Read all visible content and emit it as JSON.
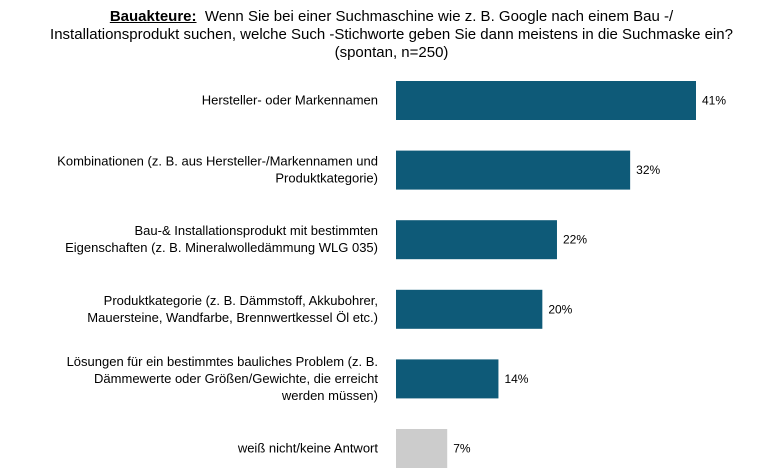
{
  "chart_data": {
    "type": "bar",
    "orientation": "horizontal",
    "title": {
      "lead": "Bauakteure:",
      "line1": "Wenn Sie bei einer Suchmaschine wie z. B. Google nach einem Bau      -/",
      "line2": "Installationsprodukt suchen, welche Such    -Stichworte geben Sie dann meistens in die Suchmaske ein?",
      "line3": "(spontan, n=250)"
    },
    "categories": [
      [
        "Hersteller- oder Markennamen"
      ],
      [
        "Kombinationen (z. B. aus Hersteller-/Markennamen und",
        "Produktkategorie)"
      ],
      [
        "Bau-& Installationsprodukt mit bestimmten",
        "Eigenschaften (z. B. Mineralwolledämmung WLG 035)"
      ],
      [
        "Produktkategorie (z. B. Dämmstoff, Akkubohrer,",
        "Mauersteine, Wandfarbe, Brennwertkessel Öl etc.)"
      ],
      [
        "Lösungen für ein bestimmtes bauliches Problem (z. B.",
        "Dämmewerte oder Größen/Gewichte, die erreicht",
        "werden müssen)"
      ],
      [
        "weiß nicht/keine Antwort"
      ]
    ],
    "values": [
      41,
      32,
      22,
      20,
      14,
      7
    ],
    "value_labels": [
      "41%",
      "32%",
      "22%",
      "20%",
      "14%",
      "7%"
    ],
    "colors": [
      "#0e5a78",
      "#0e5a78",
      "#0e5a78",
      "#0e5a78",
      "#0e5a78",
      "#cccccc"
    ],
    "unit": "%",
    "xlim": [
      0,
      41
    ],
    "grid": false,
    "legend": "none"
  }
}
